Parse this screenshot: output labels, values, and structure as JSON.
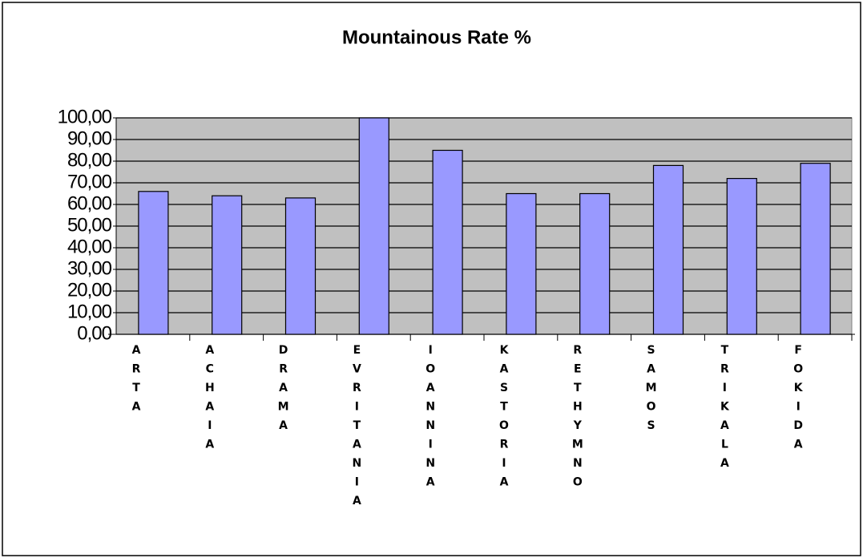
{
  "chart_data": {
    "type": "bar",
    "title": "Mountainous Rate %",
    "categories": [
      "ARTA",
      "ACHAIA",
      "DRAMA",
      "EVRITANIA",
      "IOANNINA",
      "KASTORIA",
      "RETHYMNO",
      "SAMOS",
      "TRIKALA",
      "FOKIDA"
    ],
    "values": [
      66,
      64,
      63,
      100,
      85,
      65,
      65,
      78,
      72,
      79
    ],
    "color": "#9999ff",
    "ylim": [
      0,
      100
    ],
    "yticks": [
      {
        "value": 0,
        "label": "0,00"
      },
      {
        "value": 10,
        "label": "10,00"
      },
      {
        "value": 20,
        "label": "20,00"
      },
      {
        "value": 30,
        "label": "30,00"
      },
      {
        "value": 40,
        "label": "40,00"
      },
      {
        "value": 50,
        "label": "50,00"
      },
      {
        "value": 60,
        "label": "60,00"
      },
      {
        "value": 70,
        "label": "70,00"
      },
      {
        "value": 80,
        "label": "80,00"
      },
      {
        "value": 90,
        "label": "90,00"
      },
      {
        "value": 100,
        "label": "100,00"
      }
    ],
    "grid": true
  }
}
